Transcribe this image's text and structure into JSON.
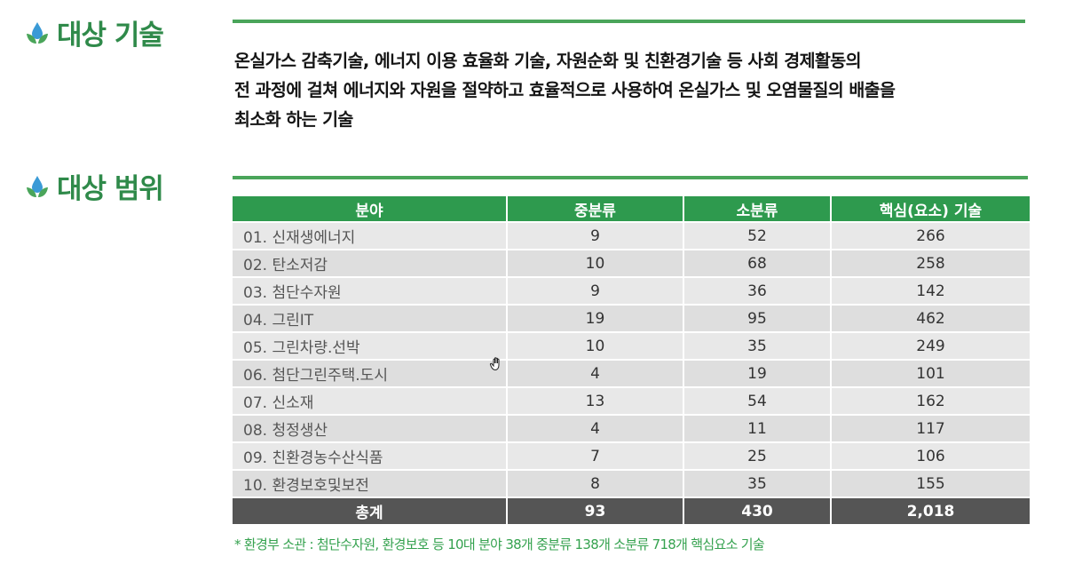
{
  "section_target_tech": {
    "title": "대상 기술"
  },
  "description": {
    "lines": [
      "온실가스 감축기술, 에너지 이용 효율화 기술, 자원순화 및 친환경기술 등 사회  경제활동의",
      "전 과정에 걸쳐 에너지와 자원을 절약하고 효율적으로 사용하여  온실가스 및 오염물질의 배출을",
      "최소화 하는 기술"
    ]
  },
  "section_target_scope": {
    "title": "대상 범위"
  },
  "table": {
    "headers": [
      "분야",
      "중분류",
      "소분류",
      "핵심(요소) 기술"
    ],
    "rows": [
      [
        "01. 신재생에너지",
        "9",
        "52",
        "266"
      ],
      [
        "02. 탄소저감",
        "10",
        "68",
        "258"
      ],
      [
        "03. 첨단수자원",
        "9",
        "36",
        "142"
      ],
      [
        "04. 그린IT",
        "19",
        "95",
        "462"
      ],
      [
        "05. 그린차량.선박",
        "10",
        "35",
        "249"
      ],
      [
        "06. 첨단그린주택.도시",
        "4",
        "19",
        "101"
      ],
      [
        "07. 신소재",
        "13",
        "54",
        "162"
      ],
      [
        "08. 청정생산",
        "4",
        "11",
        "117"
      ],
      [
        "09. 친환경농수산식품",
        "7",
        "25",
        "106"
      ],
      [
        "10. 환경보호및보전",
        "8",
        "35",
        "155"
      ]
    ],
    "total": [
      "총계",
      "93",
      "430",
      "2,018"
    ]
  },
  "footnote": "* 환경부 소관 : 첨단수자원, 환경보호 등 10대 분야 38개 중분류 138개 소분류 718개 핵심요소 기술",
  "colors": {
    "accent_green": "#2e9a4e",
    "total_row": "#555555"
  },
  "icons": {
    "heading": "water-drop-leaf-icon",
    "cursor": "hand-cursor-icon"
  }
}
